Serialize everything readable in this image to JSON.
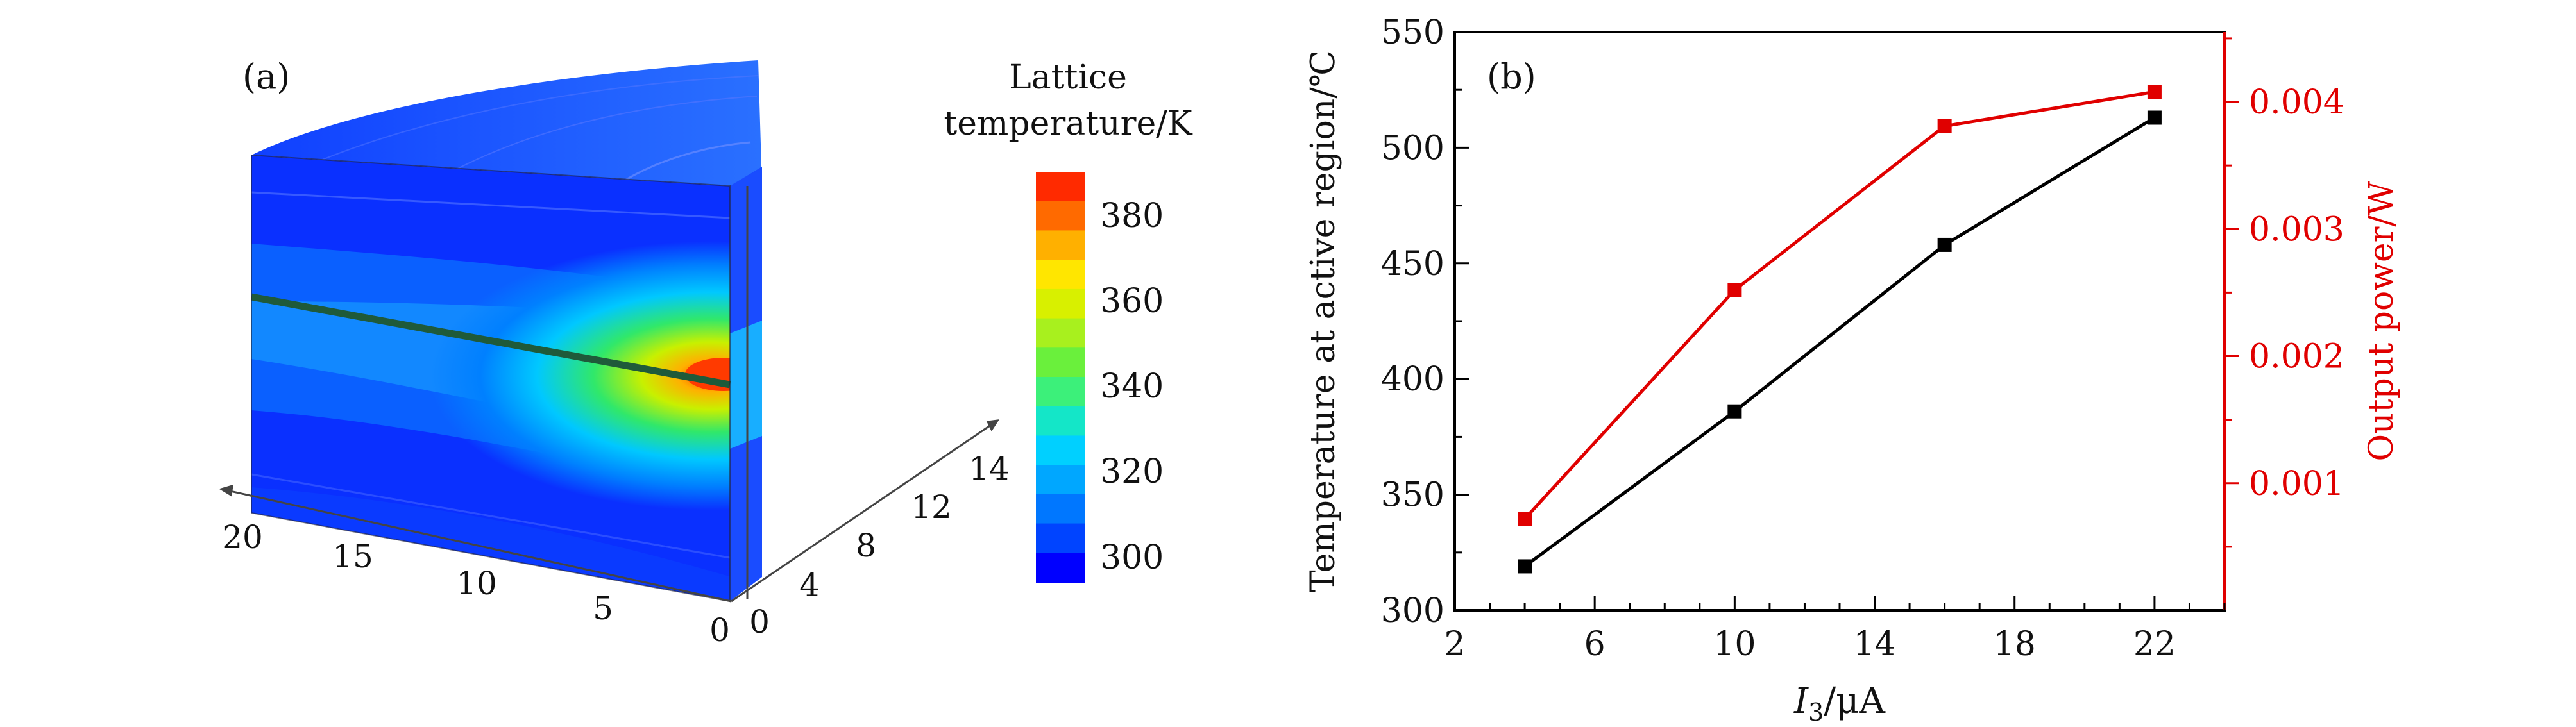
{
  "panel_a": {
    "label": "(a)",
    "colorbar_title": [
      "Lattice",
      "temperature/K"
    ],
    "colorbar_ticks": [
      "380",
      "360",
      "340",
      "320",
      "300"
    ],
    "colorbar_range": [
      295,
      390
    ],
    "colorbar_colors": [
      "#0000ff",
      "#0044ff",
      "#0077ff",
      "#00a7ff",
      "#00d0ff",
      "#14e6c8",
      "#3cf07a",
      "#6af03c",
      "#a8f01e",
      "#d8f000",
      "#ffe600",
      "#ffb000",
      "#ff6a00",
      "#ff2a00"
    ],
    "axis_left_ticks": [
      "20",
      "15",
      "10",
      "5",
      "0"
    ],
    "axis_depth_ticks": [
      "0",
      "4",
      "8",
      "12",
      "14"
    ]
  },
  "chart_data": {
    "type": "line",
    "label": "(b)",
    "title": "",
    "xlabel_main": "I",
    "xlabel_sub": "3",
    "xlabel_unit": "/μA",
    "ylabel": "Temperature at active region/℃",
    "y2label": "Output power/W",
    "xlim": [
      2,
      24
    ],
    "ylim": [
      300,
      550
    ],
    "y2lim": [
      0.0,
      0.00455
    ],
    "xticks": [
      "2",
      "6",
      "10",
      "14",
      "18",
      "22"
    ],
    "yticks": [
      "300",
      "350",
      "400",
      "450",
      "500",
      "550"
    ],
    "y2ticks": [
      "0.001",
      "0.002",
      "0.003",
      "0.004"
    ],
    "x": [
      4,
      10,
      16,
      22
    ],
    "series": [
      {
        "axis": "left",
        "color": "#000000",
        "values": [
          319,
          386,
          458,
          513
        ]
      },
      {
        "axis": "right",
        "color": "#e00000",
        "values": [
          0.00072,
          0.00252,
          0.00381,
          0.00408
        ]
      }
    ]
  }
}
